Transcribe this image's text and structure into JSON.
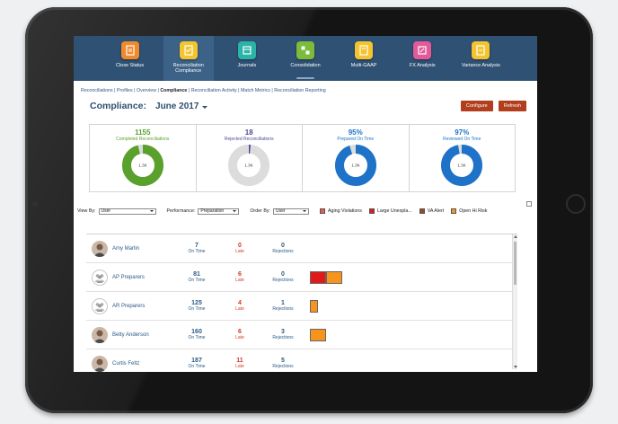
{
  "nav": {
    "items": [
      {
        "label": "Close Status",
        "color": "#f08a2c",
        "icon": "clipboard-icon",
        "active": false
      },
      {
        "label": "Reconciliation Compliance",
        "color": "#f4c430",
        "icon": "checklist-icon",
        "active": true
      },
      {
        "label": "Journals",
        "color": "#2bb3a8",
        "icon": "journal-icon",
        "active": false
      },
      {
        "label": "Consolidation",
        "color": "#7cbb3c",
        "icon": "consolidation-icon",
        "active": false
      },
      {
        "label": "Multi-GAAP",
        "color": "#f4c430",
        "icon": "gaap-icon",
        "active": false
      },
      {
        "label": "FX Analysis",
        "color": "#e25a9a",
        "icon": "fx-icon",
        "active": false
      },
      {
        "label": "Variance Analysis",
        "color": "#f4c430",
        "icon": "variance-icon",
        "active": false
      }
    ]
  },
  "breadcrumb": {
    "reconciliations": "Reconciliations",
    "profiles": "Profiles",
    "overview": "Overview",
    "compliance": "Compliance",
    "activity": "Reconciliation Activity",
    "match": "Match Metrics",
    "reporting": "Reconciliation Reporting",
    "sep": " | "
  },
  "header": {
    "title": "Compliance:",
    "period": "June 2017",
    "configure_label": "Configure",
    "refresh_label": "Refresh"
  },
  "summary": [
    {
      "value": "1155",
      "label": "Completed Reconciliations",
      "color": "#5aa02c",
      "fill": 0.96,
      "center": "1.3K"
    },
    {
      "value": "18",
      "label": "Rejected Reconciliations",
      "color": "#4a4a9a",
      "fill": 0.014,
      "center": "1.3K"
    },
    {
      "value": "95%",
      "label": "Prepared On Time",
      "color": "#1e73c8",
      "fill": 0.95,
      "center": "1.3K"
    },
    {
      "value": "97%",
      "label": "Reviewed On Time",
      "color": "#1e73c8",
      "fill": 0.97,
      "center": "1.3K"
    }
  ],
  "filters": {
    "view_by_label": "View By:",
    "view_by_value": "User",
    "performance_label": "Performance:",
    "performance_value": "Preparation",
    "order_by_label": "Order By:",
    "order_by_value": "User"
  },
  "legend": [
    {
      "label": "Aging Violations",
      "color": "#f05a4a"
    },
    {
      "label": "Large Unexpla...",
      "color": "#e01a1a"
    },
    {
      "label": "VA Alert",
      "color": "#a0471e"
    },
    {
      "label": "Open Hi Risk",
      "color": "#f7941d"
    }
  ],
  "rows": [
    {
      "name": "Amy Marlin",
      "avatar": "photo",
      "on_time": "7",
      "late": "0",
      "rejections": "0",
      "bars": []
    },
    {
      "name": "AP Preparers",
      "avatar": "group",
      "on_time": "81",
      "late": "6",
      "rejections": "0",
      "bars": [
        {
          "color": "#e01a1a",
          "w": 18
        },
        {
          "color": "#f7941d",
          "w": 18
        }
      ]
    },
    {
      "name": "AR Preparers",
      "avatar": "group",
      "on_time": "125",
      "late": "4",
      "rejections": "1",
      "bars": [
        {
          "color": "#f7941d",
          "w": 9
        }
      ]
    },
    {
      "name": "Betty Anderson",
      "avatar": "photo",
      "on_time": "160",
      "late": "6",
      "rejections": "3",
      "bars": [
        {
          "color": "#f7941d",
          "w": 18
        }
      ]
    },
    {
      "name": "Curtis Feltz",
      "avatar": "photo",
      "on_time": "187",
      "late": "11",
      "rejections": "5",
      "bars": []
    }
  ],
  "row_labels": {
    "on_time": "On Time",
    "late": "Late",
    "rejections": "Rejections"
  }
}
